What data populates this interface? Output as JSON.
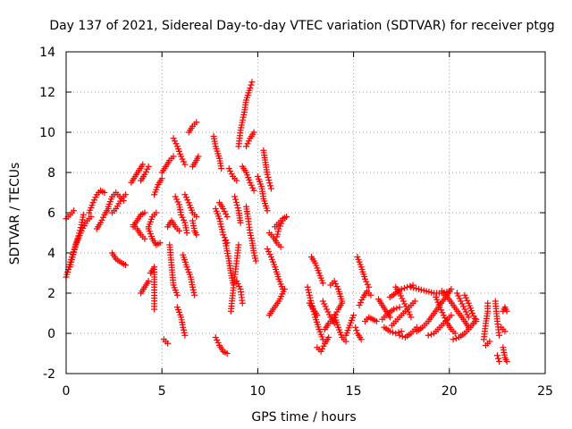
{
  "chart_data": {
    "type": "scatter",
    "title": "Day 137 of 2021, Sidereal Day-to-day VTEC variation (SDTVAR) for receiver ptgg",
    "xlabel": "GPS time / hours",
    "ylabel": "SDTVAR / TECUs",
    "xlim": [
      0,
      25
    ],
    "ylim": [
      -2,
      14
    ],
    "xticks": [
      0,
      5,
      10,
      15,
      20,
      25
    ],
    "yticks": [
      -2,
      0,
      2,
      4,
      6,
      8,
      10,
      12,
      14
    ],
    "grid": true,
    "marker": "+",
    "color": "#ff0000",
    "tracks": [
      [
        [
          0.0,
          2.8
        ],
        [
          0.3,
          3.8
        ],
        [
          0.6,
          4.7
        ],
        [
          0.8,
          5.4
        ],
        [
          0.9,
          5.9
        ]
      ],
      [
        [
          0.0,
          5.7
        ],
        [
          0.2,
          5.9
        ],
        [
          0.4,
          6.1
        ]
      ],
      [
        [
          0.2,
          3.3
        ],
        [
          0.5,
          4.4
        ],
        [
          0.8,
          5.1
        ],
        [
          1.1,
          5.6
        ],
        [
          1.3,
          5.8
        ]
      ],
      [
        [
          1.2,
          6.0
        ],
        [
          1.4,
          6.5
        ],
        [
          1.6,
          6.9
        ],
        [
          1.8,
          7.1
        ],
        [
          2.0,
          7.0
        ]
      ],
      [
        [
          1.6,
          5.2
        ],
        [
          1.8,
          5.5
        ],
        [
          2.0,
          5.9
        ],
        [
          2.2,
          6.2
        ]
      ],
      [
        [
          2.2,
          6.3
        ],
        [
          2.4,
          6.8
        ],
        [
          2.6,
          7.0
        ],
        [
          2.8,
          6.8
        ],
        [
          3.0,
          6.6
        ]
      ],
      [
        [
          2.4,
          6.0
        ],
        [
          2.6,
          6.2
        ],
        [
          2.9,
          6.7
        ],
        [
          3.1,
          6.9
        ]
      ],
      [
        [
          2.4,
          4.0
        ],
        [
          2.6,
          3.7
        ],
        [
          2.9,
          3.5
        ],
        [
          3.1,
          3.4
        ]
      ],
      [
        [
          3.4,
          7.5
        ],
        [
          3.6,
          7.8
        ],
        [
          3.8,
          8.1
        ],
        [
          4.0,
          8.4
        ]
      ],
      [
        [
          3.5,
          5.3
        ],
        [
          3.7,
          5.6
        ],
        [
          3.9,
          5.9
        ],
        [
          4.1,
          6.0
        ]
      ],
      [
        [
          3.5,
          5.4
        ],
        [
          3.7,
          5.2
        ],
        [
          3.9,
          4.9
        ],
        [
          4.1,
          4.7
        ]
      ],
      [
        [
          3.9,
          7.6
        ],
        [
          4.1,
          7.9
        ],
        [
          4.3,
          8.3
        ]
      ],
      [
        [
          3.9,
          2.0
        ],
        [
          4.1,
          2.3
        ],
        [
          4.3,
          2.6
        ]
      ],
      [
        [
          4.3,
          5.3
        ],
        [
          4.5,
          5.8
        ],
        [
          4.7,
          6.0
        ]
      ],
      [
        [
          4.3,
          5.2
        ],
        [
          4.5,
          4.7
        ],
        [
          4.7,
          4.4
        ],
        [
          4.9,
          4.5
        ]
      ],
      [
        [
          4.4,
          3.0
        ],
        [
          4.6,
          3.3
        ],
        [
          4.6,
          2.3
        ],
        [
          4.6,
          1.2
        ]
      ],
      [
        [
          4.6,
          6.9
        ],
        [
          4.8,
          7.4
        ],
        [
          5.0,
          7.7
        ]
      ],
      [
        [
          5.0,
          8.0
        ],
        [
          5.2,
          8.3
        ],
        [
          5.4,
          8.6
        ],
        [
          5.6,
          8.8
        ]
      ],
      [
        [
          5.1,
          -0.3
        ],
        [
          5.3,
          -0.5
        ]
      ],
      [
        [
          5.3,
          5.3
        ],
        [
          5.5,
          5.6
        ],
        [
          5.7,
          5.3
        ],
        [
          5.9,
          5.1
        ]
      ],
      [
        [
          5.4,
          4.4
        ],
        [
          5.5,
          3.4
        ],
        [
          5.6,
          2.4
        ],
        [
          5.8,
          1.9
        ]
      ],
      [
        [
          5.6,
          9.7
        ],
        [
          5.8,
          9.3
        ],
        [
          6.0,
          8.8
        ],
        [
          6.2,
          8.4
        ]
      ],
      [
        [
          5.7,
          6.8
        ],
        [
          5.9,
          6.4
        ],
        [
          6.0,
          5.9
        ],
        [
          6.2,
          5.5
        ],
        [
          6.3,
          5.0
        ]
      ],
      [
        [
          5.8,
          1.3
        ],
        [
          6.0,
          0.8
        ],
        [
          6.1,
          0.3
        ],
        [
          6.2,
          -0.1
        ]
      ],
      [
        [
          6.1,
          3.9
        ],
        [
          6.3,
          3.3
        ],
        [
          6.5,
          2.8
        ],
        [
          6.6,
          2.3
        ],
        [
          6.7,
          1.9
        ]
      ],
      [
        [
          6.2,
          6.9
        ],
        [
          6.4,
          6.5
        ],
        [
          6.6,
          6.0
        ],
        [
          6.8,
          5.8
        ]
      ],
      [
        [
          6.4,
          10.0
        ],
        [
          6.6,
          10.3
        ],
        [
          6.8,
          10.5
        ]
      ],
      [
        [
          6.6,
          8.3
        ],
        [
          6.8,
          8.6
        ],
        [
          6.9,
          8.8
        ]
      ],
      [
        [
          6.6,
          5.6
        ],
        [
          6.7,
          5.1
        ],
        [
          6.8,
          4.9
        ]
      ],
      [
        [
          7.7,
          9.8
        ],
        [
          7.8,
          9.3
        ],
        [
          8.0,
          8.7
        ],
        [
          8.1,
          8.2
        ]
      ],
      [
        [
          7.8,
          6.2
        ],
        [
          8.0,
          5.7
        ],
        [
          8.2,
          4.9
        ],
        [
          8.4,
          4.5
        ]
      ],
      [
        [
          7.8,
          -0.2
        ],
        [
          8.0,
          -0.6
        ],
        [
          8.2,
          -0.9
        ],
        [
          8.4,
          -1.0
        ]
      ],
      [
        [
          8.0,
          6.5
        ],
        [
          8.2,
          6.2
        ],
        [
          8.4,
          5.8
        ]
      ],
      [
        [
          8.3,
          4.6
        ],
        [
          8.4,
          4.1
        ],
        [
          8.5,
          3.6
        ],
        [
          8.6,
          3.0
        ],
        [
          8.7,
          2.5
        ]
      ],
      [
        [
          8.5,
          8.2
        ],
        [
          8.7,
          7.8
        ],
        [
          8.9,
          7.6
        ]
      ],
      [
        [
          8.6,
          1.1
        ],
        [
          8.7,
          2.0
        ],
        [
          8.8,
          2.8
        ],
        [
          8.9,
          3.6
        ],
        [
          9.0,
          4.4
        ]
      ],
      [
        [
          8.8,
          6.8
        ],
        [
          9.0,
          6.1
        ],
        [
          9.1,
          5.5
        ]
      ],
      [
        [
          8.9,
          2.6
        ],
        [
          9.1,
          2.2
        ],
        [
          9.2,
          1.5
        ]
      ],
      [
        [
          9.0,
          9.3
        ],
        [
          9.1,
          10.1
        ],
        [
          9.3,
          11.0
        ],
        [
          9.4,
          11.6
        ],
        [
          9.6,
          12.2
        ],
        [
          9.7,
          12.5
        ]
      ],
      [
        [
          9.2,
          8.3
        ],
        [
          9.4,
          8.0
        ],
        [
          9.6,
          7.5
        ],
        [
          9.8,
          7.1
        ]
      ],
      [
        [
          9.4,
          6.3
        ],
        [
          9.5,
          5.7
        ],
        [
          9.6,
          5.0
        ],
        [
          9.7,
          4.6
        ],
        [
          9.8,
          4.0
        ],
        [
          9.9,
          3.6
        ]
      ],
      [
        [
          9.4,
          9.3
        ],
        [
          9.6,
          9.7
        ],
        [
          9.8,
          10.0
        ]
      ],
      [
        [
          10.0,
          7.8
        ],
        [
          10.2,
          7.3
        ],
        [
          10.3,
          6.7
        ],
        [
          10.5,
          6.1
        ]
      ],
      [
        [
          10.3,
          9.1
        ],
        [
          10.4,
          8.5
        ],
        [
          10.5,
          7.9
        ],
        [
          10.7,
          7.2
        ]
      ],
      [
        [
          10.6,
          5.0
        ],
        [
          10.8,
          4.8
        ],
        [
          11.0,
          4.5
        ],
        [
          11.2,
          4.3
        ]
      ],
      [
        [
          10.5,
          4.2
        ],
        [
          10.7,
          3.8
        ],
        [
          10.9,
          3.3
        ],
        [
          11.1,
          2.7
        ],
        [
          11.3,
          2.2
        ]
      ],
      [
        [
          10.6,
          0.9
        ],
        [
          10.8,
          1.2
        ],
        [
          11.1,
          1.6
        ],
        [
          11.4,
          2.2
        ]
      ],
      [
        [
          10.9,
          5.3
        ],
        [
          11.1,
          5.5
        ],
        [
          11.3,
          5.7
        ],
        [
          11.5,
          5.8
        ]
      ],
      [
        [
          11.0,
          4.8
        ],
        [
          11.1,
          5.2
        ],
        [
          11.3,
          5.6
        ]
      ],
      [
        [
          12.6,
          2.3
        ],
        [
          12.8,
          1.5
        ],
        [
          13.0,
          0.8
        ],
        [
          13.2,
          0.2
        ],
        [
          13.4,
          -0.3
        ]
      ],
      [
        [
          12.8,
          3.8
        ],
        [
          13.0,
          3.5
        ],
        [
          13.2,
          3.0
        ],
        [
          13.4,
          2.5
        ]
      ],
      [
        [
          12.7,
          1.5
        ],
        [
          12.9,
          1.2
        ],
        [
          13.1,
          0.9
        ]
      ],
      [
        [
          13.1,
          -0.7
        ],
        [
          13.3,
          -0.9
        ],
        [
          13.5,
          -0.5
        ],
        [
          13.7,
          -0.2
        ]
      ],
      [
        [
          13.4,
          1.6
        ],
        [
          13.6,
          1.2
        ],
        [
          13.8,
          0.8
        ],
        [
          14.0,
          0.5
        ]
      ],
      [
        [
          13.5,
          0.2
        ],
        [
          13.7,
          0.5
        ],
        [
          14.0,
          0.8
        ],
        [
          14.2,
          1.2
        ],
        [
          14.4,
          1.5
        ]
      ],
      [
        [
          13.8,
          2.4
        ],
        [
          14.0,
          2.6
        ],
        [
          14.2,
          2.2
        ],
        [
          14.4,
          1.6
        ]
      ],
      [
        [
          14.0,
          0.9
        ],
        [
          14.2,
          0.3
        ],
        [
          14.4,
          -0.2
        ],
        [
          14.6,
          -0.4
        ]
      ],
      [
        [
          14.6,
          -0.1
        ],
        [
          14.8,
          0.4
        ],
        [
          15.0,
          0.9
        ]
      ],
      [
        [
          15.1,
          0.3
        ],
        [
          15.2,
          0.0
        ],
        [
          15.4,
          -0.3
        ]
      ],
      [
        [
          15.2,
          3.8
        ],
        [
          15.4,
          3.3
        ],
        [
          15.6,
          2.7
        ],
        [
          15.8,
          2.3
        ]
      ],
      [
        [
          15.3,
          1.4
        ],
        [
          15.5,
          1.8
        ],
        [
          15.7,
          2.1
        ],
        [
          15.9,
          1.9
        ]
      ],
      [
        [
          15.6,
          0.6
        ],
        [
          15.8,
          0.8
        ],
        [
          16.0,
          0.7
        ],
        [
          16.2,
          0.6
        ]
      ],
      [
        [
          16.3,
          1.7
        ],
        [
          16.5,
          1.4
        ],
        [
          16.7,
          1.1
        ],
        [
          16.9,
          0.8
        ]
      ],
      [
        [
          16.5,
          0.7
        ],
        [
          16.8,
          1.0
        ],
        [
          17.1,
          1.2
        ],
        [
          17.4,
          1.3
        ]
      ],
      [
        [
          16.6,
          0.3
        ],
        [
          16.9,
          0.1
        ],
        [
          17.2,
          0.0
        ],
        [
          17.5,
          0.1
        ]
      ],
      [
        [
          16.9,
          1.8
        ],
        [
          17.2,
          2.0
        ],
        [
          17.5,
          2.2
        ],
        [
          17.8,
          2.3
        ],
        [
          18.1,
          2.4
        ]
      ],
      [
        [
          17.0,
          0.4
        ],
        [
          17.3,
          0.7
        ],
        [
          17.6,
          1.0
        ],
        [
          17.9,
          1.3
        ],
        [
          18.2,
          1.6
        ]
      ],
      [
        [
          17.2,
          2.3
        ],
        [
          17.4,
          2.0
        ],
        [
          17.6,
          1.6
        ],
        [
          17.8,
          1.2
        ],
        [
          18.0,
          0.8
        ]
      ],
      [
        [
          17.4,
          -0.1
        ],
        [
          17.7,
          -0.2
        ],
        [
          18.0,
          0.0
        ],
        [
          18.3,
          0.3
        ]
      ],
      [
        [
          18.0,
          2.3
        ],
        [
          18.4,
          2.2
        ],
        [
          18.8,
          2.1
        ],
        [
          19.2,
          2.0
        ],
        [
          19.6,
          2.0
        ],
        [
          20.0,
          2.1
        ]
      ],
      [
        [
          18.3,
          0.1
        ],
        [
          18.6,
          0.3
        ],
        [
          18.9,
          0.6
        ],
        [
          19.2,
          1.0
        ],
        [
          19.5,
          1.4
        ],
        [
          19.8,
          1.8
        ],
        [
          20.1,
          2.2
        ]
      ],
      [
        [
          18.9,
          -0.1
        ],
        [
          19.2,
          0.0
        ],
        [
          19.5,
          0.3
        ],
        [
          19.8,
          0.6
        ],
        [
          20.1,
          0.9
        ]
      ],
      [
        [
          19.3,
          1.8
        ],
        [
          19.5,
          1.3
        ],
        [
          19.7,
          0.9
        ],
        [
          19.9,
          0.5
        ],
        [
          20.1,
          0.2
        ],
        [
          20.3,
          0.0
        ]
      ],
      [
        [
          19.6,
          2.1
        ],
        [
          19.9,
          1.8
        ],
        [
          20.2,
          1.4
        ],
        [
          20.5,
          1.0
        ],
        [
          20.8,
          0.6
        ],
        [
          21.0,
          0.3
        ]
      ],
      [
        [
          20.2,
          -0.3
        ],
        [
          20.5,
          -0.2
        ],
        [
          20.8,
          0.0
        ],
        [
          21.1,
          0.3
        ],
        [
          21.4,
          0.7
        ]
      ],
      [
        [
          20.4,
          2.0
        ],
        [
          20.6,
          1.6
        ],
        [
          20.8,
          1.2
        ],
        [
          21.0,
          0.8
        ]
      ],
      [
        [
          20.8,
          1.9
        ],
        [
          21.0,
          1.5
        ],
        [
          21.2,
          1.0
        ],
        [
          21.4,
          0.6
        ]
      ],
      [
        [
          21.8,
          -0.3
        ],
        [
          21.9,
          0.5
        ],
        [
          22.0,
          1.1
        ],
        [
          22.0,
          1.5
        ]
      ],
      [
        [
          21.9,
          -0.6
        ],
        [
          22.1,
          -0.4
        ]
      ],
      [
        [
          22.4,
          1.6
        ],
        [
          22.5,
          0.6
        ],
        [
          22.6,
          -0.1
        ]
      ],
      [
        [
          22.5,
          -1.1
        ],
        [
          22.6,
          -1.4
        ]
      ],
      [
        [
          22.8,
          1.1
        ],
        [
          22.9,
          1.3
        ],
        [
          23.0,
          1.1
        ]
      ],
      [
        [
          22.8,
          -0.7
        ],
        [
          22.9,
          -1.2
        ],
        [
          23.0,
          -1.4
        ]
      ],
      [
        [
          22.7,
          0.3
        ],
        [
          22.9,
          0.1
        ]
      ]
    ]
  }
}
